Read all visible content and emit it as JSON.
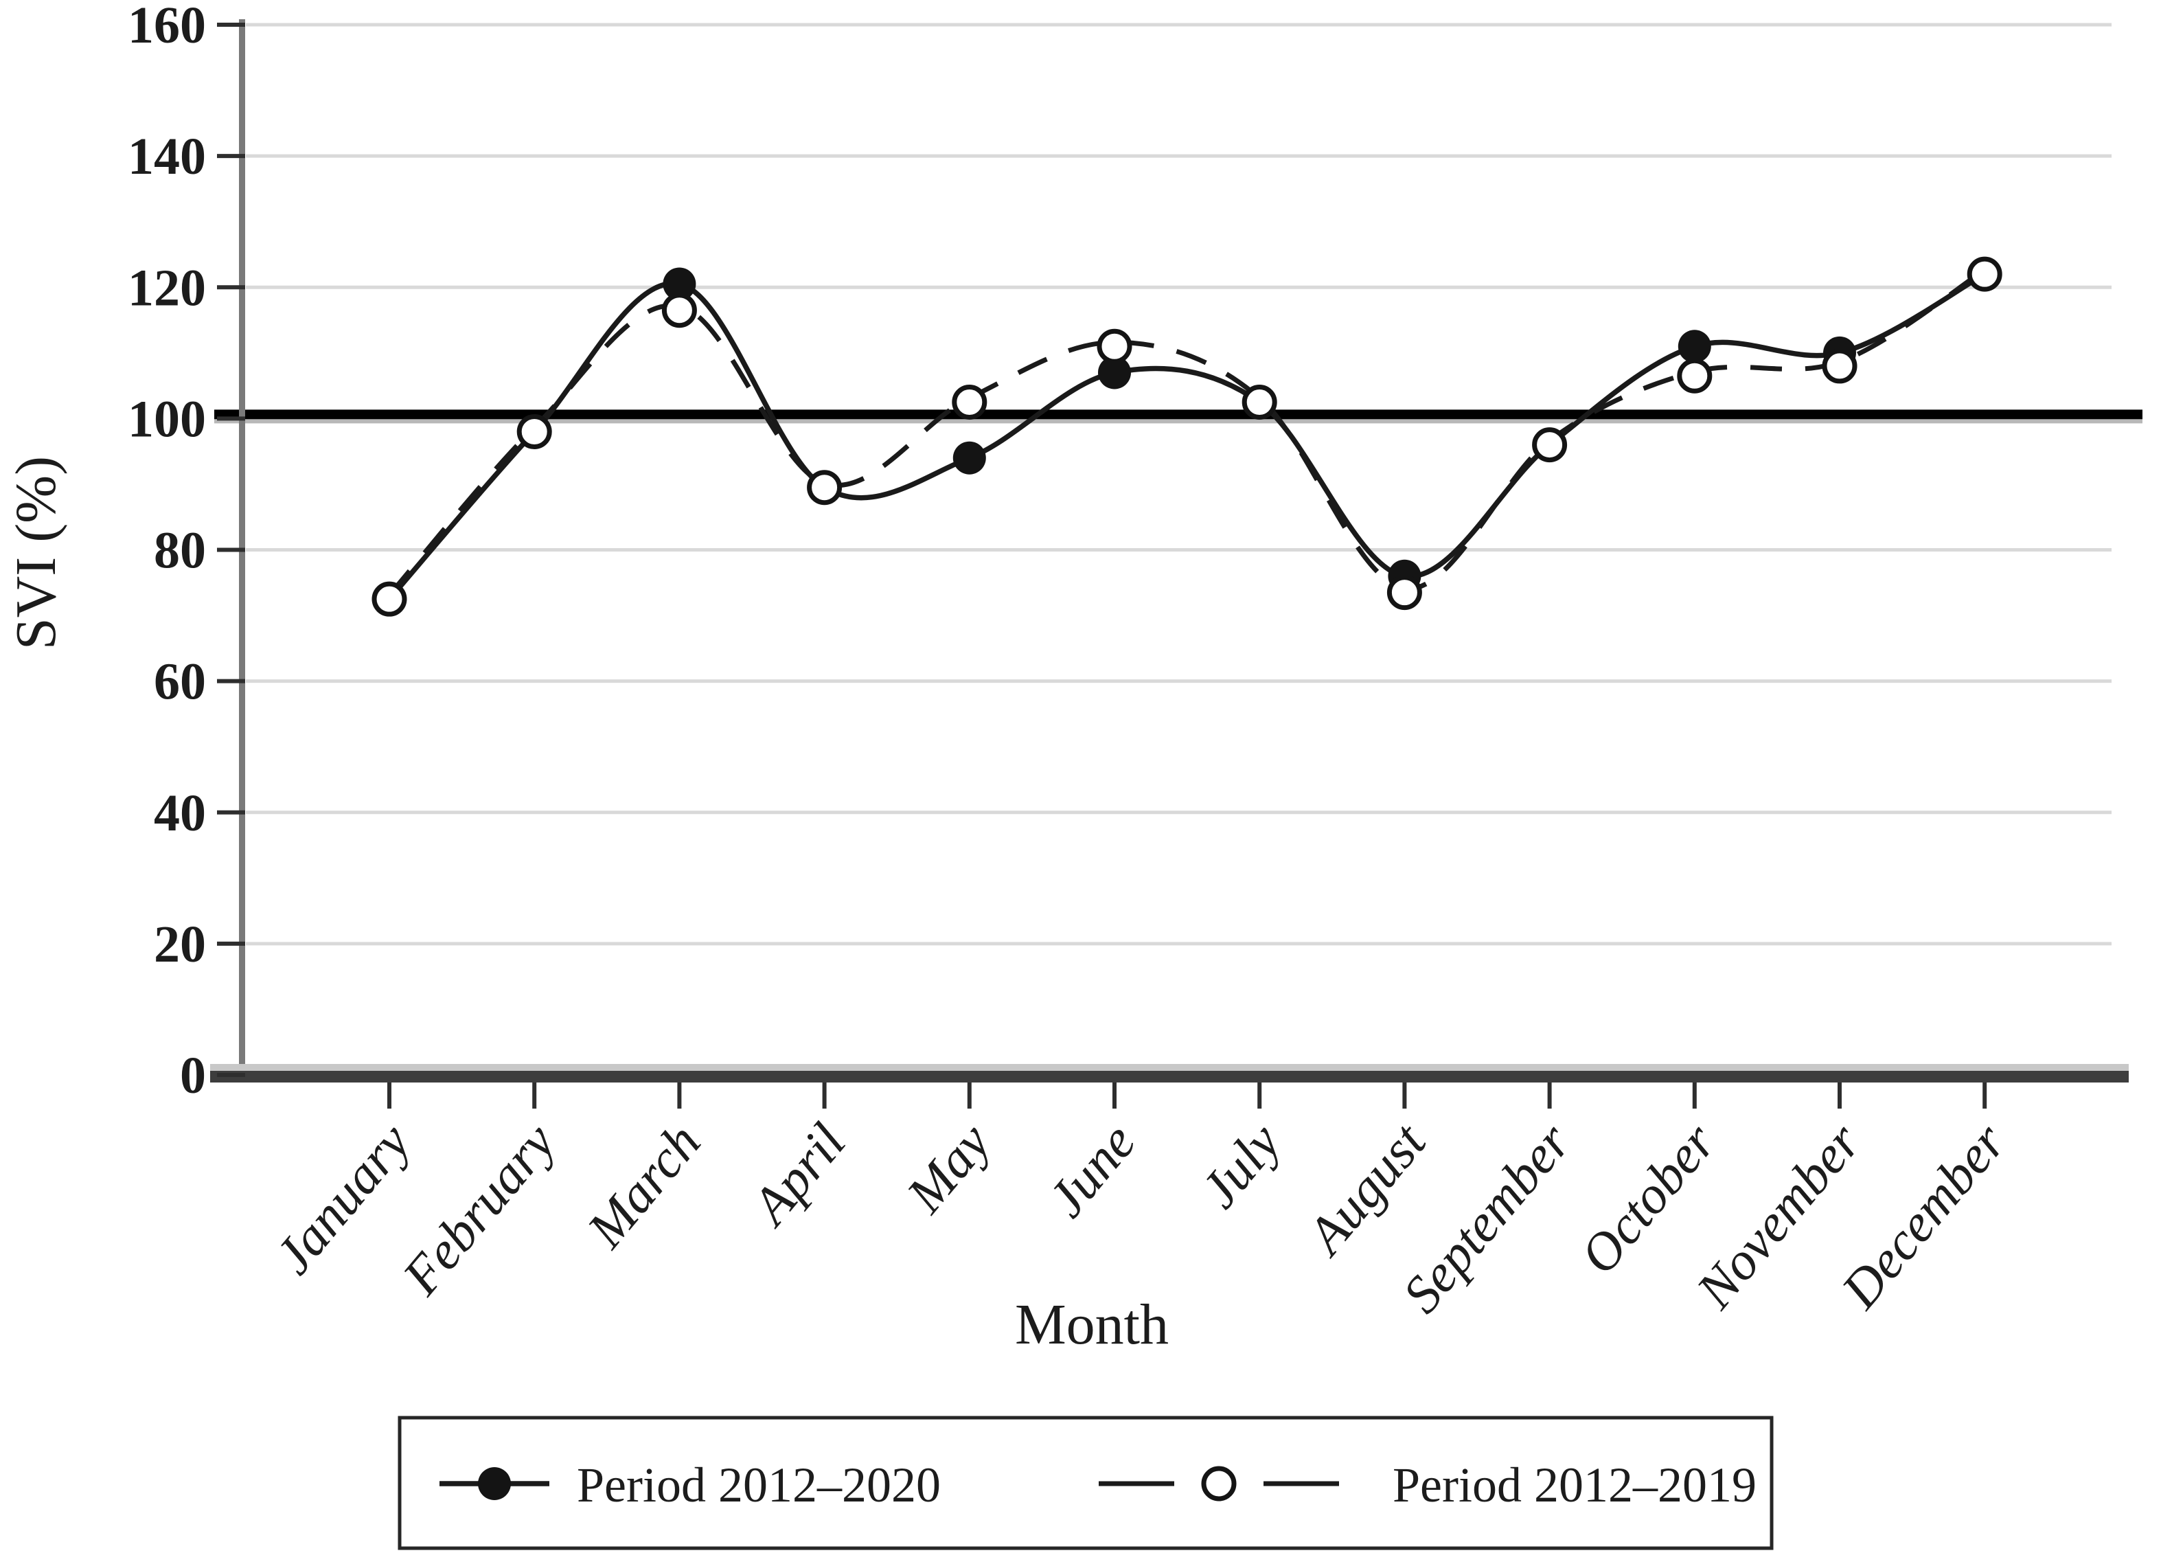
{
  "figure": {
    "background": "#ffffff"
  },
  "chart_data": {
    "type": "line",
    "title": "",
    "xlabel": "Month",
    "ylabel": "SVI (%)",
    "ylim": [
      0,
      160
    ],
    "yticks": [
      0,
      20,
      40,
      60,
      80,
      100,
      120,
      140,
      160
    ],
    "grid": "horizontal",
    "grid_color": "#d9d9d9",
    "reference_line_y": 100,
    "reference_line_color": "#000000",
    "legend_position": "bottom",
    "categories": [
      "January",
      "February",
      "March",
      "April",
      "May",
      "June",
      "July",
      "August",
      "September",
      "October",
      "November",
      "December"
    ],
    "series": [
      {
        "name": "Period 2012–2020",
        "line_style": "solid",
        "marker": "filled-circle",
        "color": "#1a1a1a",
        "values": [
          72.5,
          98,
          120.5,
          89.5,
          94,
          107,
          102.5,
          76,
          96,
          111,
          110,
          122
        ]
      },
      {
        "name": "Period 2012–2019",
        "line_style": "dashed",
        "marker": "open-circle",
        "color": "#1a1a1a",
        "values": [
          72.5,
          98,
          116.5,
          89.5,
          102.5,
          111,
          102.5,
          73.5,
          96,
          106.5,
          108,
          122
        ]
      }
    ]
  },
  "colors": {
    "axis_line": "#7a7a7a",
    "x_axis_dark": "#3d3d3d",
    "x_axis_light": "#c8c8c8",
    "tick": "#2e2e2e",
    "marker_fill": "#141414",
    "legend_border": "#262626"
  }
}
